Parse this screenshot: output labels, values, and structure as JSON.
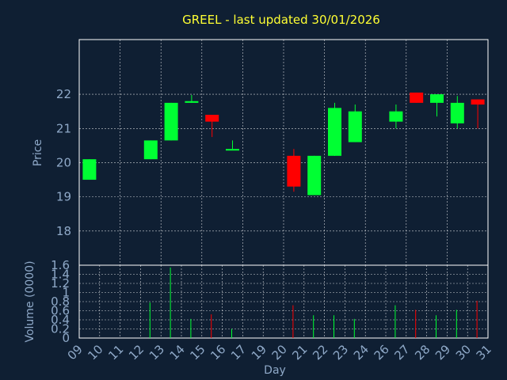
{
  "chart_data": {
    "type": "candlestick",
    "title": "GREEL - last updated 30/01/2026",
    "xlabel": "Day",
    "x_ticks": [
      "09",
      "10",
      "11",
      "12",
      "13",
      "14",
      "15",
      "16",
      "17",
      "19",
      "20",
      "21",
      "22",
      "23",
      "24",
      "26",
      "27",
      "28",
      "29",
      "30",
      "31"
    ],
    "price_panel": {
      "ylabel": "Price",
      "y_ticks": [
        "18",
        "19",
        "20",
        "21",
        "22"
      ],
      "ylim": [
        17,
        23.6
      ],
      "grid": true
    },
    "volume_panel": {
      "ylabel": "Volume (0000)",
      "y_ticks": [
        "0",
        "0.2",
        "0.4",
        "0.6",
        "0.8",
        "1",
        "1.2",
        "1.4",
        "1.6"
      ],
      "ylim": [
        0,
        1.6
      ],
      "grid": true
    },
    "candles": [
      {
        "day": "09",
        "open": 19.5,
        "high": 20.1,
        "low": 19.5,
        "close": 20.1,
        "volume": 0.0
      },
      {
        "day": "12",
        "open": 20.1,
        "high": 20.65,
        "low": 20.1,
        "close": 20.65,
        "volume": 0.78
      },
      {
        "day": "13",
        "open": 20.65,
        "high": 21.75,
        "low": 20.65,
        "close": 21.75,
        "volume": 1.55
      },
      {
        "day": "14",
        "open": 21.75,
        "high": 21.98,
        "low": 21.75,
        "close": 21.8,
        "volume": 0.42
      },
      {
        "day": "15",
        "open": 21.4,
        "high": 21.4,
        "low": 20.75,
        "close": 21.2,
        "volume": 0.52
      },
      {
        "day": "16",
        "open": 20.4,
        "high": 20.65,
        "low": 20.4,
        "close": 20.4,
        "volume": 0.2
      },
      {
        "day": "20",
        "open": 20.2,
        "high": 20.4,
        "low": 19.15,
        "close": 19.3,
        "volume": 0.72
      },
      {
        "day": "21",
        "open": 19.05,
        "high": 20.2,
        "low": 19.05,
        "close": 20.2,
        "volume": 0.5
      },
      {
        "day": "22",
        "open": 20.2,
        "high": 21.75,
        "low": 20.2,
        "close": 21.6,
        "volume": 0.5
      },
      {
        "day": "23",
        "open": 20.6,
        "high": 21.7,
        "low": 20.6,
        "close": 21.5,
        "volume": 0.42
      },
      {
        "day": "26",
        "open": 21.2,
        "high": 21.7,
        "low": 21.0,
        "close": 21.5,
        "volume": 0.72
      },
      {
        "day": "27",
        "open": 22.05,
        "high": 22.05,
        "low": 21.75,
        "close": 21.75,
        "volume": 0.62
      },
      {
        "day": "28",
        "open": 21.75,
        "high": 22.0,
        "low": 21.35,
        "close": 22.0,
        "volume": 0.5
      },
      {
        "day": "29",
        "open": 21.15,
        "high": 21.95,
        "low": 21.0,
        "close": 21.75,
        "volume": 0.62
      },
      {
        "day": "30",
        "open": 21.85,
        "high": 21.85,
        "low": 21.0,
        "close": 21.7,
        "volume": 0.82
      }
    ],
    "colors": {
      "background": "#0f1f33",
      "plot_background": "#0f1f33",
      "grid": "#ffffff",
      "axis_text": "#8fa9c8",
      "title": "#ffff33",
      "up": "#00ff33",
      "down": "#ff0000"
    }
  }
}
